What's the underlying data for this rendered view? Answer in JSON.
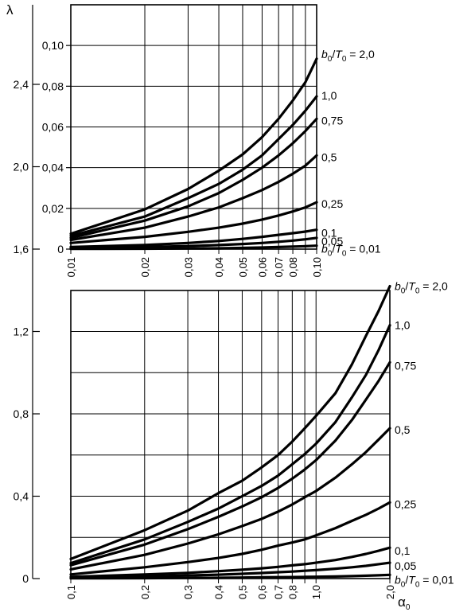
{
  "chart_data": {
    "type": "line",
    "y_axis_label": "λ",
    "x_axis_label": {
      "base": "α",
      "sub": "0"
    },
    "y_axis_main": {
      "range": [
        0,
        1.6
      ],
      "ticks": [
        {
          "v": 0,
          "label": "0"
        },
        {
          "v": 0.4,
          "label": "0,4"
        },
        {
          "v": 0.8,
          "label": "0,8"
        },
        {
          "v": 1.2,
          "label": "1,2"
        },
        {
          "v": 1.6,
          "label": "1,6"
        },
        {
          "v": 2.0,
          "label": "2,0"
        },
        {
          "v": 2.4,
          "label": "2,4"
        }
      ]
    },
    "panels": [
      {
        "id": "inset",
        "x_scale": "log",
        "x_range": [
          0.01,
          0.1
        ],
        "y_range": [
          0,
          0.12
        ],
        "x_ticks": [
          {
            "v": 0.01,
            "label": "0,01"
          },
          {
            "v": 0.02,
            "label": "0,02"
          },
          {
            "v": 0.03,
            "label": "0,03"
          },
          {
            "v": 0.04,
            "label": "0,04"
          },
          {
            "v": 0.05,
            "label": "0,05"
          },
          {
            "v": 0.06,
            "label": "0,06"
          },
          {
            "v": 0.07,
            "label": "0,07"
          },
          {
            "v": 0.08,
            "label": "0,08"
          },
          {
            "v": 0.09,
            "label": ""
          },
          {
            "v": 0.1,
            "label": "0,10"
          }
        ],
        "y_ticks": [
          {
            "v": 0,
            "label": "0"
          },
          {
            "v": 0.02,
            "label": "0,02"
          },
          {
            "v": 0.04,
            "label": "0,04"
          },
          {
            "v": 0.06,
            "label": "0,06"
          },
          {
            "v": 0.08,
            "label": "0,08"
          },
          {
            "v": 0.1,
            "label": "0,10"
          }
        ],
        "series": [
          {
            "label": "b0/T0 = 2,0",
            "x": [
              0.01,
              0.02,
              0.03,
              0.04,
              0.05,
              0.06,
              0.07,
              0.08,
              0.09,
              0.1
            ],
            "y": [
              0.0075,
              0.0195,
              0.0295,
              0.0385,
              0.0465,
              0.055,
              0.064,
              0.073,
              0.082,
              0.0935
            ]
          },
          {
            "label": "1,0",
            "x": [
              0.01,
              0.02,
              0.03,
              0.04,
              0.05,
              0.06,
              0.07,
              0.08,
              0.09,
              0.1
            ],
            "y": [
              0.0065,
              0.016,
              0.025,
              0.032,
              0.039,
              0.046,
              0.054,
              0.061,
              0.068,
              0.075
            ]
          },
          {
            "label": "0,75",
            "x": [
              0.01,
              0.02,
              0.03,
              0.04,
              0.05,
              0.06,
              0.07,
              0.08,
              0.09,
              0.1
            ],
            "y": [
              0.0055,
              0.014,
              0.021,
              0.0275,
              0.034,
              0.04,
              0.046,
              0.052,
              0.058,
              0.064
            ]
          },
          {
            "label": "0,5",
            "x": [
              0.01,
              0.02,
              0.03,
              0.04,
              0.05,
              0.06,
              0.07,
              0.08,
              0.09,
              0.1
            ],
            "y": [
              0.0045,
              0.0105,
              0.016,
              0.0205,
              0.025,
              0.029,
              0.033,
              0.037,
              0.041,
              0.046
            ]
          },
          {
            "label": "0,25",
            "x": [
              0.01,
              0.02,
              0.03,
              0.04,
              0.05,
              0.06,
              0.07,
              0.08,
              0.09,
              0.1
            ],
            "y": [
              0.003,
              0.006,
              0.0085,
              0.0105,
              0.0125,
              0.0145,
              0.0165,
              0.0185,
              0.0205,
              0.023
            ]
          },
          {
            "label": "0,1",
            "x": [
              0.01,
              0.02,
              0.03,
              0.04,
              0.05,
              0.06,
              0.07,
              0.08,
              0.09,
              0.1
            ],
            "y": [
              0.001,
              0.002,
              0.003,
              0.004,
              0.005,
              0.006,
              0.007,
              0.0078,
              0.0086,
              0.0095
            ]
          },
          {
            "label": "0,05",
            "x": [
              0.01,
              0.02,
              0.03,
              0.04,
              0.05,
              0.06,
              0.07,
              0.08,
              0.09,
              0.1
            ],
            "y": [
              0.0004,
              0.001,
              0.0015,
              0.002,
              0.0025,
              0.003,
              0.0036,
              0.0042,
              0.0048,
              0.0055
            ]
          },
          {
            "label": "b0/T0 = 0,01",
            "x": [
              0.01,
              0.02,
              0.03,
              0.04,
              0.05,
              0.06,
              0.07,
              0.08,
              0.09,
              0.1
            ],
            "y": [
              0.0001,
              0.0002,
              0.0003,
              0.0004,
              0.0006,
              0.0008,
              0.001,
              0.0012,
              0.0014,
              0.0017
            ]
          }
        ]
      },
      {
        "id": "main",
        "x_scale": "log",
        "x_range": [
          0.1,
          2.0
        ],
        "y_range": [
          0,
          1.45
        ],
        "x_ticks": [
          {
            "v": 0.1,
            "label": "0,1"
          },
          {
            "v": 0.2,
            "label": "0,2"
          },
          {
            "v": 0.3,
            "label": "0,3"
          },
          {
            "v": 0.4,
            "label": "0,4"
          },
          {
            "v": 0.5,
            "label": "0,5"
          },
          {
            "v": 0.6,
            "label": "0,6"
          },
          {
            "v": 0.7,
            "label": "0,7"
          },
          {
            "v": 0.8,
            "label": "0,8"
          },
          {
            "v": 0.9,
            "label": ""
          },
          {
            "v": 1.0,
            "label": "1,0"
          },
          {
            "v": 2.0,
            "label": "2,0"
          }
        ],
        "y_grid": [
          0.4,
          0.8,
          1.2
        ],
        "series": [
          {
            "label": "b0/T0 = 2,0",
            "x": [
              0.1,
              0.2,
              0.3,
              0.4,
              0.5,
              0.6,
              0.7,
              0.8,
              0.9,
              1.0,
              1.2,
              1.4,
              1.6,
              1.8,
              2.0
            ],
            "y": [
              0.095,
              0.235,
              0.33,
              0.415,
              0.475,
              0.54,
              0.6,
              0.665,
              0.73,
              0.79,
              0.9,
              1.04,
              1.18,
              1.3,
              1.42
            ]
          },
          {
            "label": "1,0",
            "x": [
              0.1,
              0.2,
              0.3,
              0.4,
              0.5,
              0.6,
              0.7,
              0.8,
              0.9,
              1.0,
              1.2,
              1.4,
              1.6,
              1.8,
              2.0
            ],
            "y": [
              0.075,
              0.19,
              0.275,
              0.34,
              0.4,
              0.45,
              0.5,
              0.555,
              0.605,
              0.655,
              0.76,
              0.88,
              0.99,
              1.11,
              1.23
            ]
          },
          {
            "label": "0,75",
            "x": [
              0.1,
              0.2,
              0.3,
              0.4,
              0.5,
              0.6,
              0.7,
              0.8,
              0.9,
              1.0,
              1.2,
              1.4,
              1.6,
              1.8,
              2.0
            ],
            "y": [
              0.065,
              0.165,
              0.24,
              0.3,
              0.35,
              0.395,
              0.44,
              0.485,
              0.53,
              0.575,
              0.67,
              0.77,
              0.87,
              0.96,
              1.05
            ]
          },
          {
            "label": "0,5",
            "x": [
              0.1,
              0.2,
              0.3,
              0.4,
              0.5,
              0.6,
              0.7,
              0.8,
              0.9,
              1.0,
              1.2,
              1.4,
              1.6,
              1.8,
              2.0
            ],
            "y": [
              0.045,
              0.115,
              0.17,
              0.215,
              0.255,
              0.29,
              0.325,
              0.36,
              0.395,
              0.425,
              0.49,
              0.555,
              0.615,
              0.675,
              0.73
            ]
          },
          {
            "label": "0,25",
            "x": [
              0.1,
              0.2,
              0.3,
              0.4,
              0.5,
              0.6,
              0.7,
              0.8,
              0.9,
              1.0,
              1.2,
              1.4,
              1.6,
              1.8,
              2.0
            ],
            "y": [
              0.02,
              0.055,
              0.08,
              0.1,
              0.12,
              0.14,
              0.16,
              0.175,
              0.19,
              0.21,
              0.245,
              0.28,
              0.31,
              0.34,
              0.37
            ]
          },
          {
            "label": "0,1",
            "x": [
              0.1,
              0.2,
              0.3,
              0.4,
              0.5,
              0.6,
              0.7,
              0.8,
              0.9,
              1.0,
              1.2,
              1.4,
              1.6,
              1.8,
              2.0
            ],
            "y": [
              0.008,
              0.02,
              0.028,
              0.036,
              0.043,
              0.05,
              0.057,
              0.064,
              0.07,
              0.077,
              0.09,
              0.105,
              0.12,
              0.135,
              0.15
            ]
          },
          {
            "label": "0,05",
            "x": [
              0.1,
              0.2,
              0.3,
              0.4,
              0.5,
              0.6,
              0.7,
              0.8,
              0.9,
              1.0,
              1.2,
              1.4,
              1.6,
              1.8,
              2.0
            ],
            "y": [
              0.004,
              0.01,
              0.015,
              0.019,
              0.023,
              0.027,
              0.031,
              0.034,
              0.038,
              0.041,
              0.048,
              0.055,
              0.062,
              0.07,
              0.077
            ]
          },
          {
            "label": "b0/T0 = 0,01",
            "x": [
              0.1,
              0.2,
              0.3,
              0.4,
              0.5,
              0.6,
              0.7,
              0.8,
              0.9,
              1.0,
              1.2,
              1.4,
              1.6,
              1.8,
              2.0
            ],
            "y": [
              0.001,
              0.002,
              0.003,
              0.004,
              0.005,
              0.006,
              0.007,
              0.0075,
              0.008,
              0.009,
              0.01,
              0.012,
              0.014,
              0.016,
              0.018
            ]
          }
        ]
      }
    ]
  }
}
